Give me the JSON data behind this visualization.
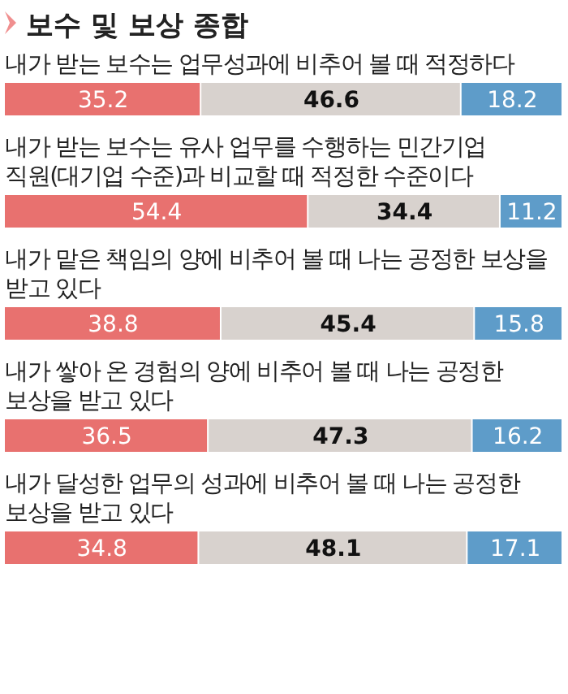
{
  "chart_data": {
    "type": "bar",
    "orientation": "horizontal",
    "stacked": true,
    "title": "보수 및 보상 종합",
    "categories": [
      "내가 받는 보수는 업무성과에 비추어 볼 때 적정하다",
      "내가 받는 보수는 유사 업무를 수행하는 민간기업 직원(대기업 수준)과 비교할 때 적정한 수준이다",
      "내가 맡은 책임의 양에 비추어 볼 때 나는 공정한 보상을 받고 있다",
      "내가 쌓아 온 경험의 양에 비추어 볼 때 나는 공정한 보상을 받고 있다",
      "내가 달성한 업무의 성과에 비추어 볼 때 나는 공정한 보상을 받고 있다"
    ],
    "series": [
      {
        "color": "#e8716f",
        "values": [
          35.2,
          54.4,
          38.8,
          36.5,
          34.8
        ]
      },
      {
        "color": "#d8d2ce",
        "values": [
          46.6,
          34.4,
          45.4,
          47.3,
          48.1
        ]
      },
      {
        "color": "#5e9cc9",
        "values": [
          18.2,
          11.2,
          15.8,
          16.2,
          17.1
        ]
      }
    ],
    "xlim": [
      0,
      100
    ],
    "data_labels": true
  }
}
